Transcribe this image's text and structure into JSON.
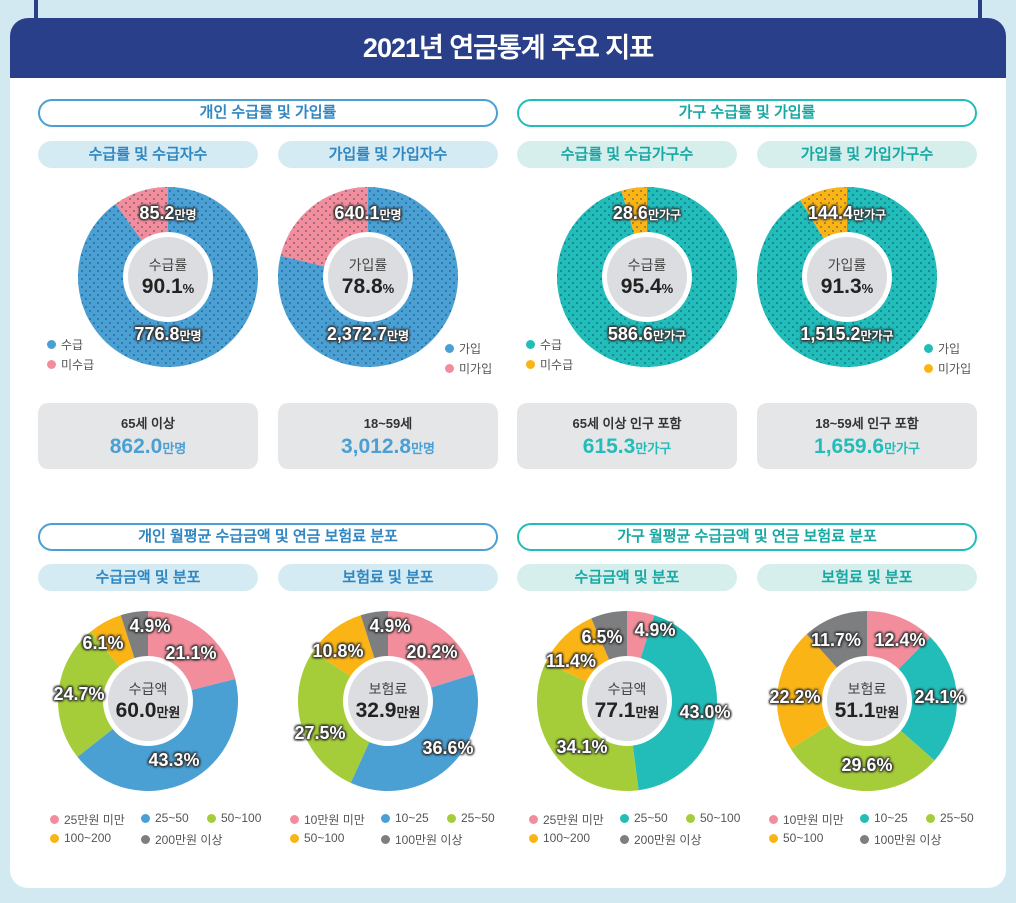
{
  "title": "2021년 연금통계 주요 지표",
  "colors": {
    "navy": "#2a3f8a",
    "blue": "#4a9fd3",
    "pink": "#f28e9c",
    "teal": "#22bdb9",
    "orange": "#fbb415",
    "green": "#a5cd39",
    "gray": "#7d7e80",
    "blue_light": "#d4ebf4",
    "teal_light": "#d6efed"
  },
  "sections": [
    {
      "title": "개인 수급률 및 가입률",
      "theme": "blue"
    },
    {
      "title": "가구 수급률 및 가입률",
      "theme": "teal"
    },
    {
      "title": "개인 월평균 수급금액 및 연금 보험료 분포",
      "theme": "blue"
    },
    {
      "title": "가구 월평균 수급금액 및 연금 보험료 분포",
      "theme": "teal"
    }
  ],
  "chart_data": [
    {
      "type": "pie",
      "subtitle": "수급률 및 수급자수",
      "center_label": "수급률",
      "center_value": "90.1",
      "center_unit": "%",
      "theme": "blue",
      "legend": "left",
      "slices": [
        {
          "name": "수급",
          "value": 90.1,
          "label": "776.8",
          "unit": "만명",
          "color": "#4a9fd3"
        },
        {
          "name": "미수급",
          "value": 9.9,
          "label": "85.2",
          "unit": "만명",
          "color": "#f28e9c"
        }
      ],
      "info": {
        "label": "65세 이상",
        "value": "862.0",
        "unit": "만명"
      }
    },
    {
      "type": "pie",
      "subtitle": "가입률 및 가입자수",
      "center_label": "가입률",
      "center_value": "78.8",
      "center_unit": "%",
      "theme": "blue",
      "legend": "right",
      "slices": [
        {
          "name": "가입",
          "value": 78.8,
          "label": "2,372.7",
          "unit": "만명",
          "color": "#4a9fd3"
        },
        {
          "name": "미가입",
          "value": 21.2,
          "label": "640.1",
          "unit": "만명",
          "color": "#f28e9c"
        }
      ],
      "info": {
        "label": "18~59세",
        "value": "3,012.8",
        "unit": "만명"
      }
    },
    {
      "type": "pie",
      "subtitle": "수급률 및 수급가구수",
      "center_label": "수급률",
      "center_value": "95.4",
      "center_unit": "%",
      "theme": "teal",
      "legend": "left",
      "slices": [
        {
          "name": "수급",
          "value": 95.4,
          "label": "586.6",
          "unit": "만가구",
          "color": "#22bdb9"
        },
        {
          "name": "미수급",
          "value": 4.6,
          "label": "28.6",
          "unit": "만가구",
          "color": "#fbb415"
        }
      ],
      "info": {
        "label": "65세 이상 인구 포함",
        "value": "615.3",
        "unit": "만가구"
      }
    },
    {
      "type": "pie",
      "subtitle": "가입률 및 가입가구수",
      "center_label": "가입률",
      "center_value": "91.3",
      "center_unit": "%",
      "theme": "teal",
      "legend": "right",
      "slices": [
        {
          "name": "가입",
          "value": 91.3,
          "label": "1,515.2",
          "unit": "만가구",
          "color": "#22bdb9"
        },
        {
          "name": "미가입",
          "value": 8.7,
          "label": "144.4",
          "unit": "만가구",
          "color": "#fbb415"
        }
      ],
      "info": {
        "label": "18~59세 인구 포함",
        "value": "1,659.6",
        "unit": "만가구"
      }
    },
    {
      "type": "pie",
      "subtitle": "수급금액 및 분포",
      "center_label": "수급액",
      "center_value": "60.0",
      "center_unit": "만원",
      "theme": "blue",
      "slices": [
        {
          "name": "25만원 미만",
          "value": 21.1,
          "color": "#f28e9c"
        },
        {
          "name": "25~50",
          "value": 43.3,
          "color": "#4a9fd3"
        },
        {
          "name": "50~100",
          "value": 24.7,
          "color": "#a5cd39"
        },
        {
          "name": "100~200",
          "value": 6.1,
          "color": "#fbb415"
        },
        {
          "name": "200만원 이상",
          "value": 4.9,
          "color": "#7d7e80"
        }
      ]
    },
    {
      "type": "pie",
      "subtitle": "보험료 및 분포",
      "center_label": "보험료",
      "center_value": "32.9",
      "center_unit": "만원",
      "theme": "blue",
      "slices": [
        {
          "name": "10만원 미만",
          "value": 20.2,
          "color": "#f28e9c"
        },
        {
          "name": "10~25",
          "value": 36.6,
          "color": "#4a9fd3"
        },
        {
          "name": "25~50",
          "value": 27.5,
          "color": "#a5cd39"
        },
        {
          "name": "50~100",
          "value": 10.8,
          "color": "#fbb415"
        },
        {
          "name": "100만원 이상",
          "value": 4.9,
          "color": "#7d7e80"
        }
      ]
    },
    {
      "type": "pie",
      "subtitle": "수급금액 및 분포",
      "center_label": "수급액",
      "center_value": "77.1",
      "center_unit": "만원",
      "theme": "teal",
      "slices": [
        {
          "name": "25만원 미만",
          "value": 4.9,
          "color": "#f28e9c"
        },
        {
          "name": "25~50",
          "value": 43.0,
          "color": "#22bdb9"
        },
        {
          "name": "50~100",
          "value": 34.1,
          "color": "#a5cd39"
        },
        {
          "name": "100~200",
          "value": 11.4,
          "color": "#fbb415"
        },
        {
          "name": "200만원 이상",
          "value": 6.5,
          "color": "#7d7e80"
        }
      ]
    },
    {
      "type": "pie",
      "subtitle": "보험료 및 분포",
      "center_label": "보험료",
      "center_value": "51.1",
      "center_unit": "만원",
      "theme": "teal",
      "slices": [
        {
          "name": "10만원 미만",
          "value": 12.4,
          "color": "#f28e9c"
        },
        {
          "name": "10~25",
          "value": 24.1,
          "color": "#22bdb9"
        },
        {
          "name": "25~50",
          "value": 29.6,
          "color": "#a5cd39"
        },
        {
          "name": "50~100",
          "value": 22.2,
          "color": "#fbb415"
        },
        {
          "name": "100만원 이상",
          "value": 11.7,
          "color": "#7d7e80"
        }
      ]
    }
  ]
}
